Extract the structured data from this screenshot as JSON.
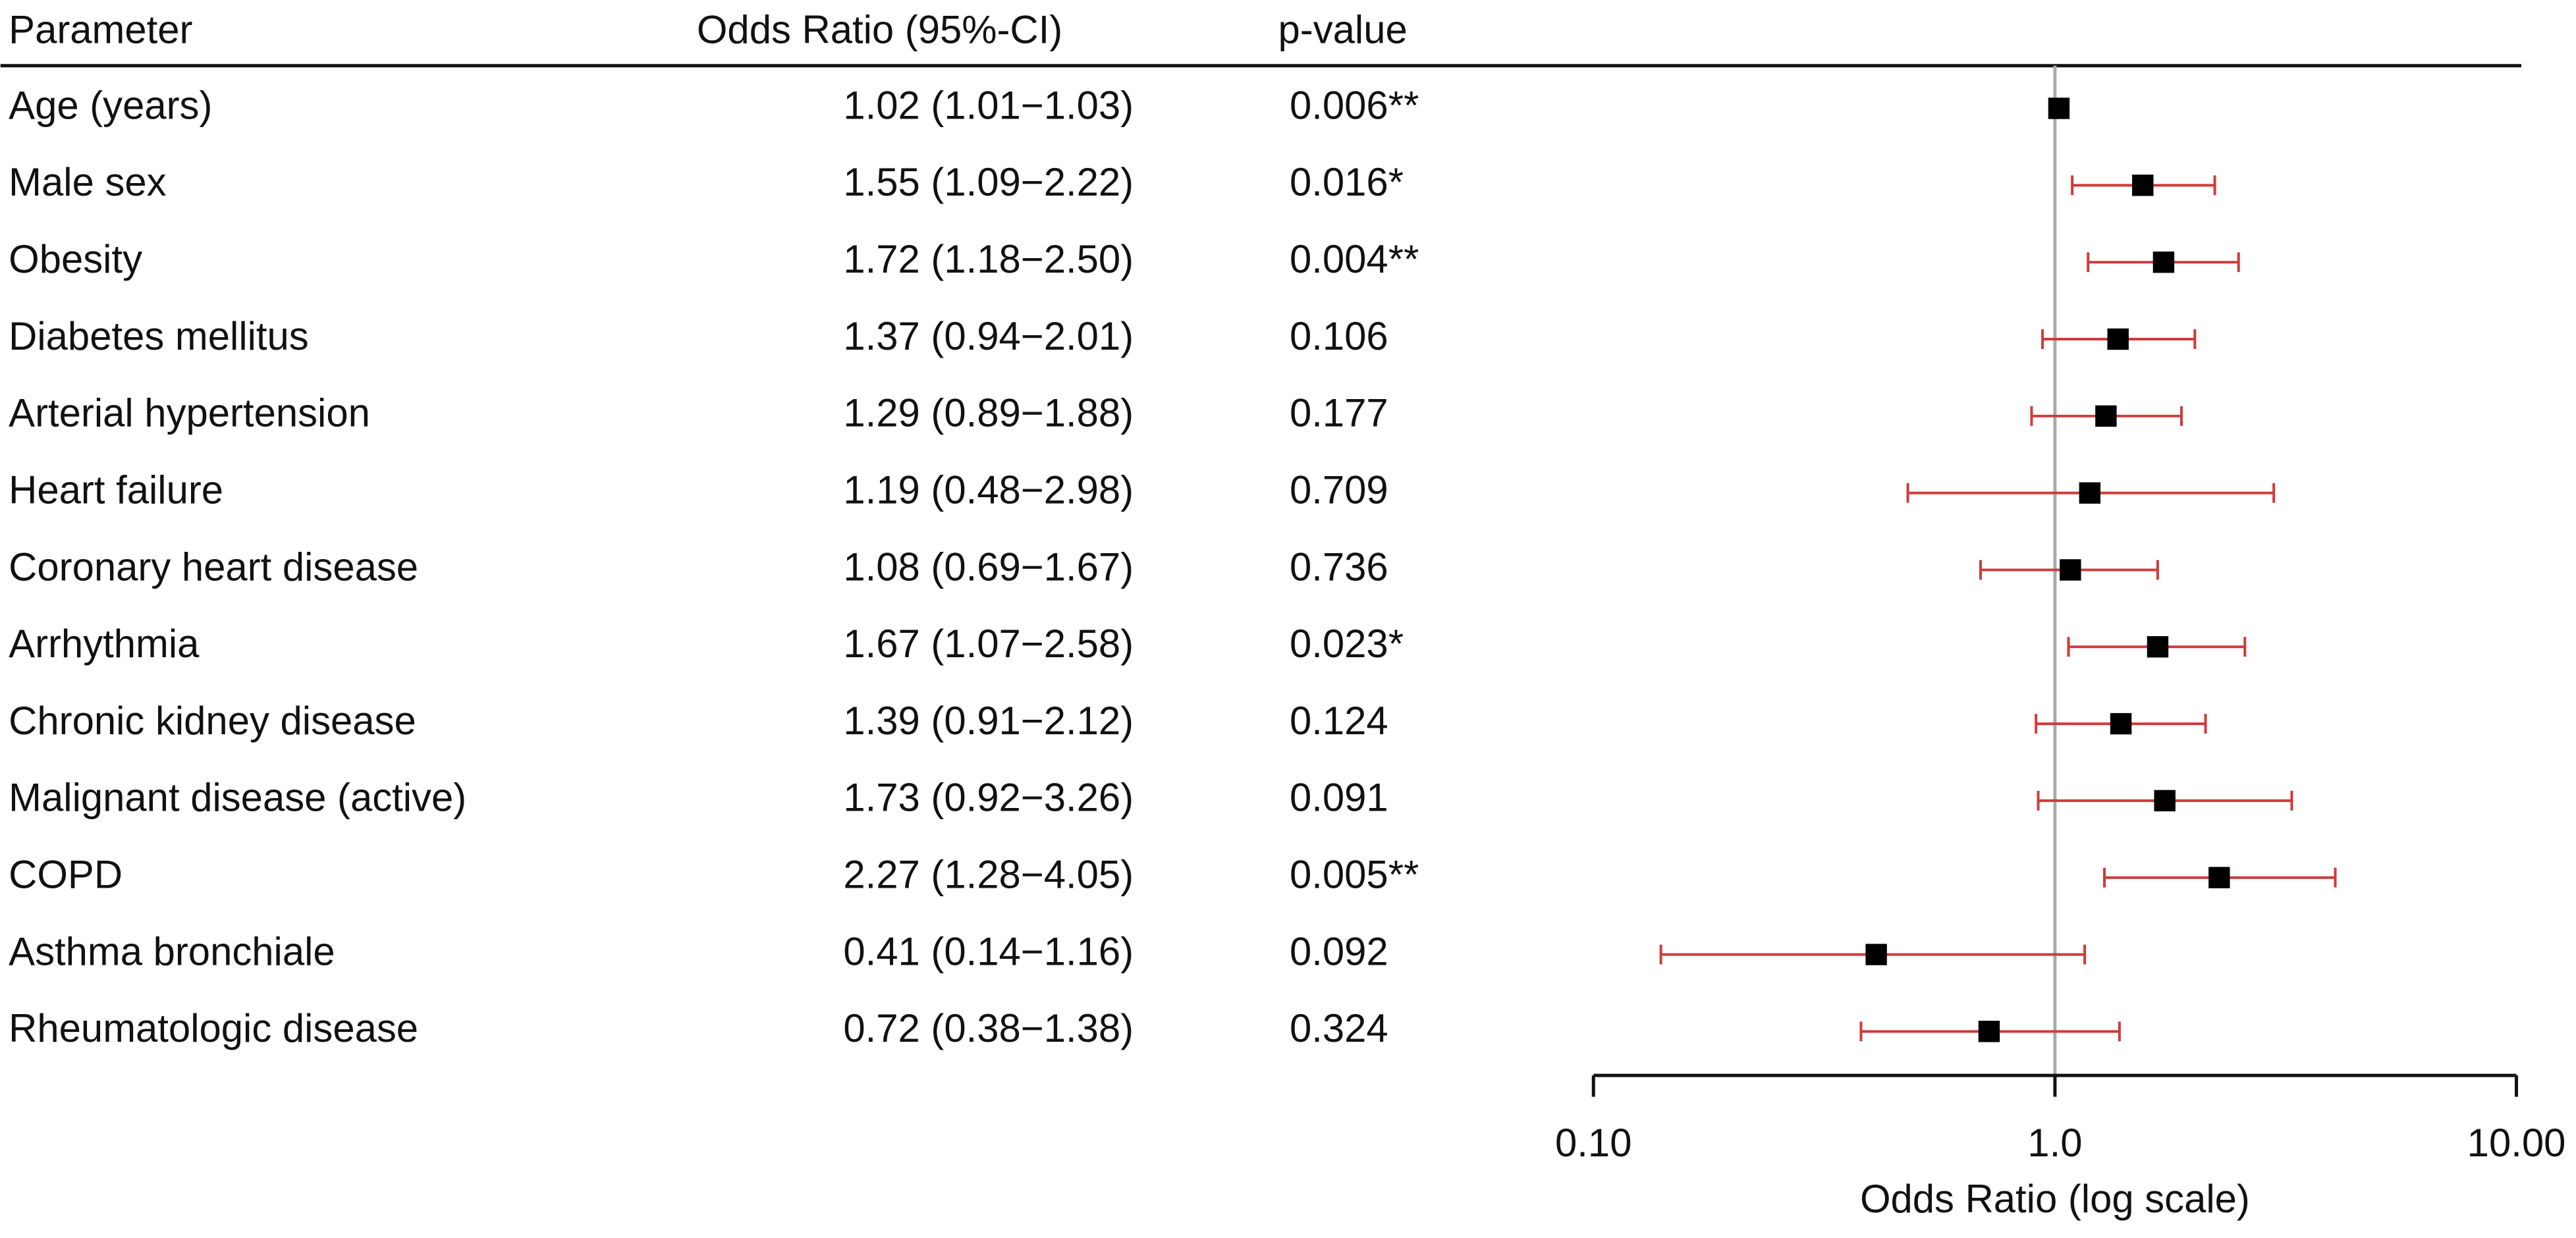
{
  "chart_data": {
    "type": "forest",
    "headers": [
      "Parameter",
      "Odds Ratio (95%-CI)",
      "p-value"
    ],
    "categories": [
      "Age (years)",
      "Male sex",
      "Obesity",
      "Diabetes mellitus",
      "Arterial hypertension",
      "Heart failure",
      "Coronary heart disease",
      "Arrhythmia",
      "Chronic kidney disease",
      "Malignant disease (active)",
      "COPD",
      "Asthma bronchiale",
      "Rheumatologic disease"
    ],
    "values": [
      1.02,
      1.55,
      1.72,
      1.37,
      1.29,
      1.19,
      1.08,
      1.67,
      1.39,
      1.73,
      2.27,
      0.41,
      0.72
    ],
    "lower": [
      1.01,
      1.09,
      1.18,
      0.94,
      0.89,
      0.48,
      0.69,
      1.07,
      0.91,
      0.92,
      1.28,
      0.14,
      0.38
    ],
    "upper": [
      1.03,
      2.22,
      2.5,
      2.01,
      1.88,
      2.98,
      1.67,
      2.58,
      2.12,
      3.26,
      4.05,
      1.16,
      1.38
    ],
    "value_labels": [
      "1.02 (1.01−1.03)",
      "1.55 (1.09−2.22)",
      "1.72 (1.18−2.50)",
      "1.37 (0.94−2.01)",
      "1.29 (0.89−1.88)",
      "1.19 (0.48−2.98)",
      "1.08 (0.69−1.67)",
      "1.67 (1.07−2.58)",
      "1.39 (0.91−2.12)",
      "1.73 (0.92−3.26)",
      "2.27 (1.28−4.05)",
      "0.41 (0.14−1.16)",
      "0.72 (0.38−1.38)"
    ],
    "p_values": [
      "0.006**",
      "0.016*",
      "0.004**",
      "0.106",
      "0.177",
      "0.709",
      "0.736",
      "0.023*",
      "0.124",
      "0.091",
      "0.005**",
      "0.092",
      "0.324"
    ],
    "xlabel": "Odds Ratio (log scale)",
    "xlim": [
      0.1,
      10
    ],
    "log_x": true,
    "xticks": [
      {
        "value": 0.1,
        "label": "0.10"
      },
      {
        "value": 1,
        "label": "1.0"
      },
      {
        "value": 10,
        "label": "10.00"
      }
    ],
    "reference_line": 1,
    "ci_color": "#d03a3a",
    "marker_color": "#000000"
  }
}
